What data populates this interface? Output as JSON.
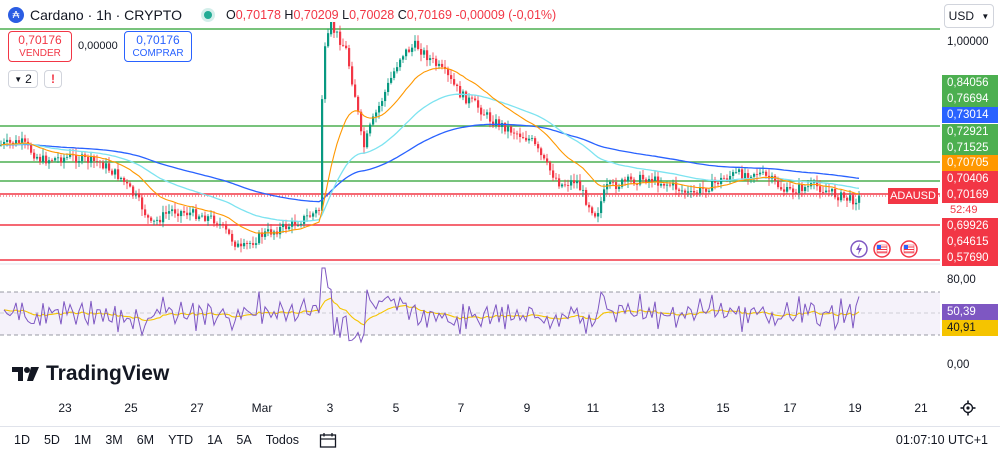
{
  "header": {
    "symbol_icon": "cardano-icon",
    "title": "Cardano · 1h · CRYPTO",
    "ohlc": {
      "o_label": "O",
      "o": "0,70178",
      "h_label": "H",
      "h": "0,70209",
      "l_label": "L",
      "l": "0,70028",
      "c_label": "C",
      "c": "0,70169",
      "change": "-0,00009 (-0,01%)"
    }
  },
  "trade": {
    "sell_price": "0,70176",
    "sell_label": "VENDER",
    "spread": "0,00000",
    "buy_price": "0,70176",
    "buy_label": "COMPRAR"
  },
  "indicators": {
    "count": "2",
    "warning": "!"
  },
  "currency": {
    "label": "USD",
    "icon": "chevron-down-icon"
  },
  "price_labels": [
    {
      "text": "1,00000",
      "bg": "transparent",
      "plain": true
    },
    {
      "text": "0,84056",
      "bg": "#4caf50"
    },
    {
      "text": "0,76694",
      "bg": "#4caf50"
    },
    {
      "text": "0,73014",
      "bg": "#2962ff"
    },
    {
      "text": "0,72921",
      "bg": "#4caf50"
    },
    {
      "text": "0,71525",
      "bg": "#4caf50"
    },
    {
      "text": "0,70705",
      "bg": "#ff9800"
    },
    {
      "text": "0,70406",
      "bg": "#f23645"
    },
    {
      "text": "0,70169",
      "bg": "#f23645"
    },
    {
      "text": "0,69926",
      "bg": "#f23645"
    },
    {
      "text": "0,64615",
      "bg": "#f23645"
    },
    {
      "text": "0,57690",
      "bg": "#f23645"
    }
  ],
  "symbol_tag": {
    "text": "ADAUSD",
    "timer": "52:49"
  },
  "rsi_scale": {
    "top": "80,00",
    "rsi": "50,39",
    "ma": "40,91",
    "bottom": "0,00"
  },
  "time_labels": [
    "23",
    "25",
    "27",
    "Mar",
    "3",
    "5",
    "7",
    "9",
    "11",
    "13",
    "15",
    "17",
    "19",
    "21"
  ],
  "ranges": [
    "1D",
    "5D",
    "1M",
    "3M",
    "6M",
    "YTD",
    "1A",
    "5A",
    "Todos"
  ],
  "clock": "01:07:10 UTC+1",
  "brand": "TradingView",
  "colors": {
    "up": "#089981",
    "down": "#f23645",
    "green_line": "#4caf50",
    "red_line": "#f23645",
    "blue_ma": "#2962ff",
    "orange_ma": "#ff9800",
    "cyan_ma": "#7de3f0",
    "rsi": "#7e57c2"
  }
}
